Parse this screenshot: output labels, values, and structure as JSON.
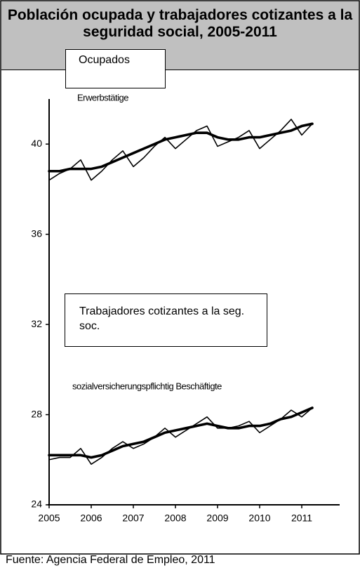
{
  "chart_data": {
    "type": "line",
    "title": "Población ocupada y trabajadores cotizantes a la seguridad social, 2005-2011",
    "annotations": [
      "Ocupados",
      "Trabajadores cotizantes a la seg. soc."
    ],
    "source": "Fuente: Agencia Federal de Empleo, 2011",
    "x": [
      2005,
      2005.25,
      2005.5,
      2005.75,
      2006,
      2006.25,
      2006.5,
      2006.75,
      2007,
      2007.25,
      2007.5,
      2007.75,
      2008,
      2008.25,
      2008.5,
      2008.75,
      2009,
      2009.25,
      2009.5,
      2009.75,
      2010,
      2010.25,
      2010.5,
      2010.75,
      2011,
      2011.25
    ],
    "series": [
      {
        "name": "Erwerbstätige",
        "color": "#000000",
        "values": [
          38.4,
          38.7,
          38.9,
          39.3,
          38.4,
          38.8,
          39.3,
          39.7,
          39.0,
          39.4,
          39.9,
          40.3,
          39.8,
          40.2,
          40.6,
          40.8,
          39.9,
          40.1,
          40.3,
          40.6,
          39.8,
          40.2,
          40.6,
          41.1,
          40.4,
          40.9
        ],
        "trend": [
          38.8,
          38.8,
          38.9,
          38.9,
          38.9,
          39.0,
          39.2,
          39.4,
          39.6,
          39.8,
          40.0,
          40.2,
          40.3,
          40.4,
          40.5,
          40.5,
          40.3,
          40.2,
          40.2,
          40.3,
          40.3,
          40.4,
          40.5,
          40.6,
          40.8,
          40.9
        ]
      },
      {
        "name": "sozialversicherungspflichtig Beschäftigte",
        "color": "#000000",
        "values": [
          26.0,
          26.1,
          26.1,
          26.5,
          25.8,
          26.1,
          26.5,
          26.8,
          26.5,
          26.7,
          27.0,
          27.4,
          27.0,
          27.3,
          27.6,
          27.9,
          27.4,
          27.4,
          27.5,
          27.7,
          27.2,
          27.5,
          27.8,
          28.2,
          27.9,
          28.3
        ],
        "trend": [
          26.2,
          26.2,
          26.2,
          26.2,
          26.1,
          26.2,
          26.4,
          26.6,
          26.7,
          26.8,
          27.0,
          27.2,
          27.3,
          27.4,
          27.5,
          27.6,
          27.5,
          27.4,
          27.4,
          27.5,
          27.5,
          27.6,
          27.8,
          27.9,
          28.1,
          28.3
        ]
      }
    ],
    "xlim": [
      2005,
      2011.9
    ],
    "xticks": [
      2005,
      2006,
      2007,
      2008,
      2009,
      2010,
      2011
    ],
    "ylim": [
      24,
      42
    ],
    "yticks": [
      24,
      28,
      32,
      36,
      40
    ],
    "grid": false
  }
}
